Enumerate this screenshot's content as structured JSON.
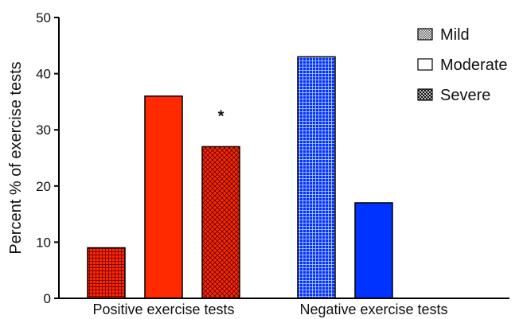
{
  "chart_data": {
    "type": "bar",
    "title": "",
    "xlabel": "",
    "ylabel": "Percent % of exercise tests",
    "ylim": [
      0,
      50
    ],
    "yticks": [
      0,
      10,
      20,
      30,
      40,
      50
    ],
    "categories": [
      "Positive exercise tests",
      "Negative exercise tests"
    ],
    "series": [
      {
        "name": "Mild",
        "values": [
          9,
          43
        ],
        "pattern": "checker"
      },
      {
        "name": "Moderate",
        "values": [
          36,
          17
        ],
        "pattern": "solid"
      },
      {
        "name": "Severe",
        "values": [
          27,
          0
        ],
        "pattern": "crosshatch"
      }
    ],
    "category_colors": [
      "#ff2a00",
      "#0033ff"
    ],
    "annotations": [
      {
        "category_index": 0,
        "series_index": 2,
        "text": "*"
      }
    ],
    "legend": {
      "placement": "top-right",
      "entries": [
        {
          "label": "Mild",
          "pattern": "checker"
        },
        {
          "label": "Moderate",
          "pattern": "solid"
        },
        {
          "label": "Severe",
          "pattern": "crosshatch"
        }
      ]
    },
    "grid": false
  }
}
